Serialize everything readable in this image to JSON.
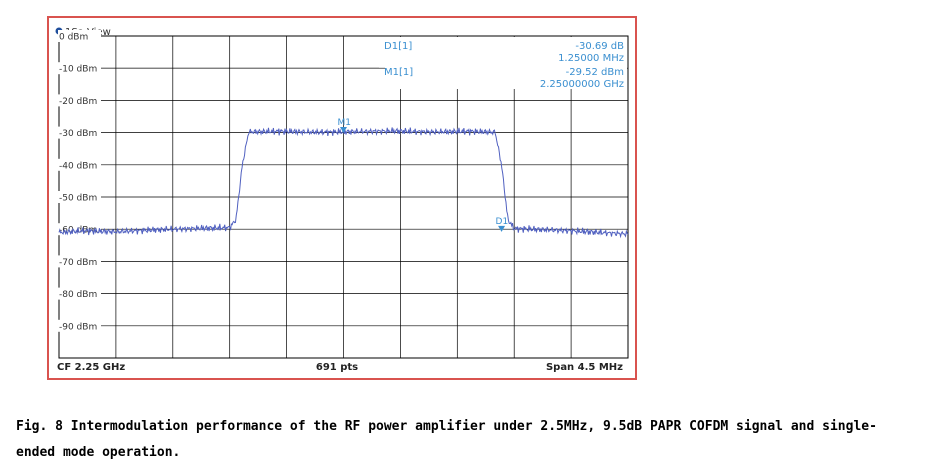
{
  "chart_data": {
    "type": "line",
    "window_title": "1Sa View",
    "ylabel_unit": "dBm",
    "y_ticks": [
      "0 dBm",
      "-10 dBm",
      "-20 dBm",
      "-30 dBm",
      "-40 dBm",
      "-50 dBm",
      "-60 dBm",
      "-70 dBm",
      "-80 dBm",
      "-90 dBm"
    ],
    "ylim": [
      -100,
      0
    ],
    "xlim_mhz": [
      2247.75,
      2252.25
    ],
    "grid": true,
    "footer": {
      "left": "CF 2.25 GHz",
      "center": "691 pts",
      "right": "Span 4.5 MHz"
    },
    "series": [
      {
        "color": "#5060c0",
        "x": [
          2247.75,
          2247.95,
          2248.2,
          2248.5,
          2248.8,
          2249.1,
          2249.15,
          2249.2,
          2249.25,
          2249.5,
          2249.8,
          2250.1,
          2250.4,
          2250.7,
          2251.0,
          2251.2,
          2251.25,
          2251.3,
          2251.35,
          2251.5,
          2251.8,
          2252.1,
          2252.25
        ],
        "y": [
          -61,
          -60.5,
          -60.8,
          -60.2,
          -59.8,
          -59.5,
          -57,
          -40,
          -29.8,
          -29.6,
          -29.9,
          -29.7,
          -29.5,
          -29.8,
          -29.6,
          -29.9,
          -40,
          -57,
          -59.8,
          -60,
          -60.5,
          -61.2,
          -61.5
        ]
      }
    ],
    "markers": [
      {
        "id": "M1",
        "x": 2250.0,
        "y": -29.52,
        "color": "#3a8fd0"
      },
      {
        "id": "D1",
        "x": 2251.25,
        "y": -60.21,
        "color": "#3a8fd0"
      }
    ],
    "marker_table": [
      {
        "name": "D1[1]",
        "value1": "-30.69 dB",
        "value2": "1.25000 MHz"
      },
      {
        "name": "M1[1]",
        "value1": "-29.52 dBm",
        "value2": "2.25000000 GHz"
      }
    ],
    "colors": {
      "marker": "#3a8fd0",
      "trace": "#5060c0",
      "grid": "#000000",
      "border": "#d9534f"
    }
  },
  "caption": "Fig. 8 Intermodulation performance of the RF power amplifier under 2.5MHz, 9.5dB PAPR COFDM signal and single-ended mode operation."
}
